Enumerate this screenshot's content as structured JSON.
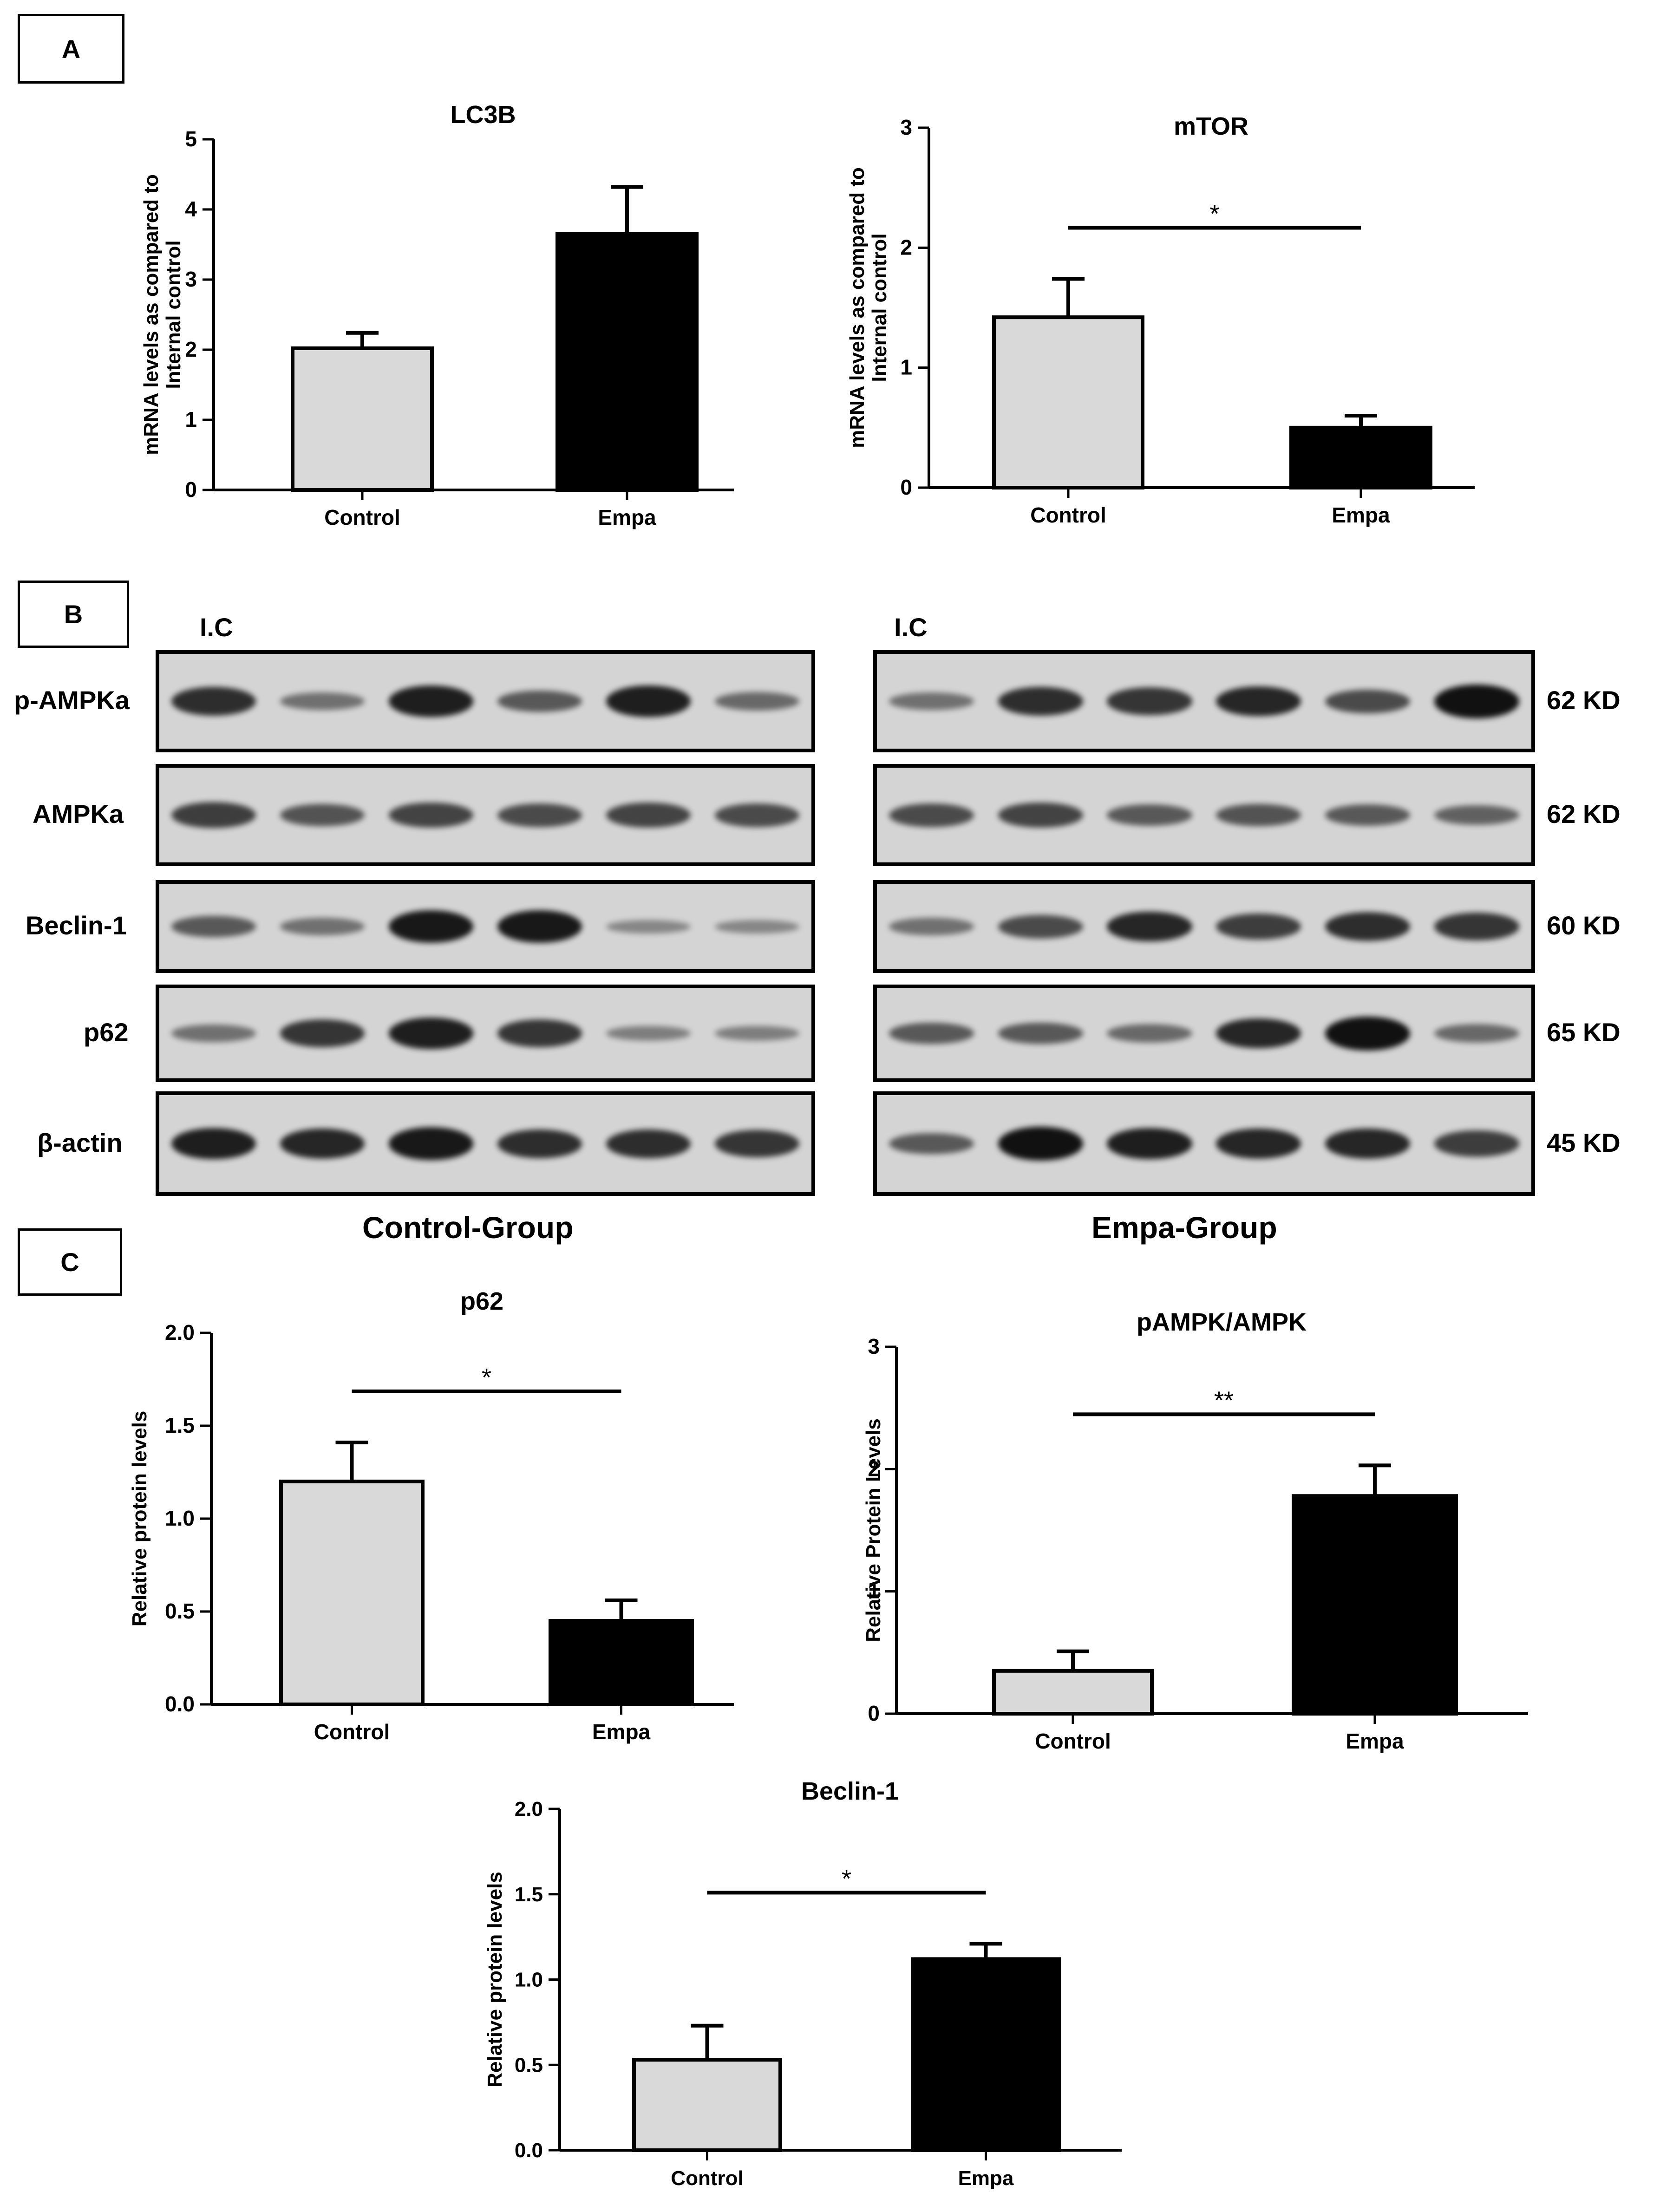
{
  "panels": {
    "a": "A",
    "b": "B",
    "c": "C"
  },
  "colors": {
    "control_bar": "#d9d9d9",
    "empa_bar": "#000000",
    "axis": "#000000",
    "blot_bg": "#d4d4d4",
    "band": "#111111"
  },
  "chart_data": [
    {
      "type": "bar",
      "title": "LC3B",
      "ylabel": "mRNA levels as compared to Internal control",
      "categories": [
        "Control",
        "Empa"
      ],
      "values": [
        2.02,
        3.65
      ],
      "errors": [
        0.22,
        0.67
      ],
      "ylim": [
        0,
        5
      ],
      "yticks": [
        "0",
        "1",
        "2",
        "3",
        "4",
        "5"
      ],
      "significance": ""
    },
    {
      "type": "bar",
      "title": "mTOR",
      "ylabel": "mRNA levels as compared to Internal control",
      "categories": [
        "Control",
        "Empa"
      ],
      "values": [
        1.42,
        0.5
      ],
      "errors": [
        0.32,
        0.1
      ],
      "ylim": [
        0,
        3
      ],
      "yticks": [
        "0",
        "1",
        "2",
        "3"
      ],
      "significance": "*"
    },
    {
      "type": "bar",
      "title": "p62",
      "ylabel": "Relative protein levels",
      "categories": [
        "Control",
        "Empa"
      ],
      "values": [
        1.2,
        0.45
      ],
      "errors": [
        0.21,
        0.11
      ],
      "ylim": [
        0,
        2
      ],
      "yticks": [
        "0.0",
        "0.5",
        "1.0",
        "1.5",
        "2.0"
      ],
      "significance": "*"
    },
    {
      "type": "bar",
      "title": "pAMPK/AMPK",
      "ylabel": "Relative Protein Levels",
      "categories": [
        "Control",
        "Empa"
      ],
      "values": [
        0.35,
        1.78
      ],
      "errors": [
        0.16,
        0.25
      ],
      "ylim": [
        0,
        3
      ],
      "yticks": [
        "0",
        "1",
        "2",
        "3"
      ],
      "significance": "**"
    },
    {
      "type": "bar",
      "title": "Beclin-1",
      "ylabel": "Relative protein levels",
      "categories": [
        "Control",
        "Empa"
      ],
      "values": [
        0.53,
        1.12
      ],
      "errors": [
        0.2,
        0.09
      ],
      "ylim": [
        0,
        2
      ],
      "yticks": [
        "0.0",
        "0.5",
        "1.0",
        "1.5",
        "2.0"
      ],
      "significance": "*"
    }
  ],
  "blot": {
    "ic_label": "I.C",
    "group_labels": [
      "Control-Group",
      "Empa-Group"
    ],
    "rows": [
      {
        "protein": "p-AMPKa",
        "size": "62 KD",
        "control": [
          0.8,
          0.35,
          0.9,
          0.5,
          0.9,
          0.4
        ],
        "empa": [
          0.35,
          0.8,
          0.75,
          0.85,
          0.6,
          1.0
        ]
      },
      {
        "protein": "AMPKa",
        "size": "62 KD",
        "control": [
          0.7,
          0.55,
          0.65,
          0.6,
          0.65,
          0.6
        ],
        "empa": [
          0.6,
          0.65,
          0.5,
          0.55,
          0.5,
          0.45
        ]
      },
      {
        "protein": "Beclin-1",
        "size": "60 KD",
        "control": [
          0.5,
          0.35,
          0.95,
          0.95,
          0.2,
          0.2
        ],
        "empa": [
          0.35,
          0.6,
          0.85,
          0.7,
          0.8,
          0.75
        ]
      },
      {
        "protein": "p62",
        "size": "65 KD",
        "control": [
          0.35,
          0.75,
          0.9,
          0.75,
          0.25,
          0.25
        ],
        "empa": [
          0.5,
          0.5,
          0.4,
          0.85,
          1.0,
          0.4
        ]
      },
      {
        "protein": "β-actin",
        "size": "45 KD",
        "control": [
          0.9,
          0.85,
          0.95,
          0.8,
          0.8,
          0.75
        ],
        "empa": [
          0.5,
          1.0,
          0.9,
          0.85,
          0.85,
          0.7
        ]
      }
    ]
  }
}
